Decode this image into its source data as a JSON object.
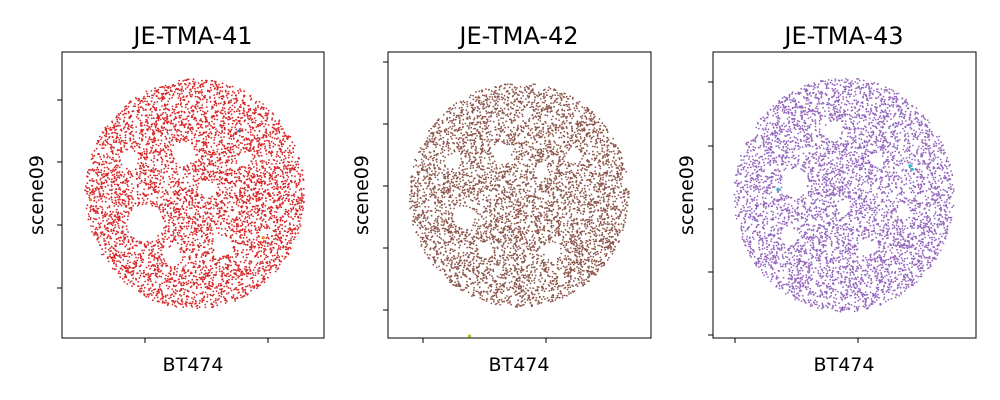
{
  "chart_data": [
    {
      "type": "scatter",
      "title": "JE-TMA-41",
      "xlabel": "BT474",
      "ylabel": "scene09",
      "x_tick_labels": [],
      "y_tick_labels": [],
      "grid": false,
      "series": [
        {
          "color": "#d62728",
          "shape": "disc",
          "center": [
            0.0,
            0.0
          ],
          "radius": 1.0,
          "approx_points": 5200
        },
        {
          "color": "#ff7f0e",
          "points": [
            [
              0.62,
              -0.38
            ],
            [
              -0.95,
              -0.05
            ]
          ]
        },
        {
          "color": "#1f77b4",
          "points": [
            [
              0.4,
              0.55
            ]
          ]
        }
      ]
    },
    {
      "type": "scatter",
      "title": "JE-TMA-42",
      "xlabel": "BT474",
      "ylabel": "scene09",
      "x_tick_labels": [],
      "y_tick_labels": [],
      "grid": false,
      "series": [
        {
          "color": "#8c564b",
          "shape": "disc",
          "center": [
            0.0,
            0.0
          ],
          "radius": 1.0,
          "approx_points": 5200
        },
        {
          "color": "#bcbd22",
          "points": [
            [
              -0.45,
              -1.26
            ]
          ]
        }
      ]
    },
    {
      "type": "scatter",
      "title": "JE-TMA-43",
      "xlabel": "BT474",
      "ylabel": "scene09",
      "x_tick_labels": [],
      "y_tick_labels": [],
      "grid": false,
      "series": [
        {
          "color": "#9467bd",
          "shape": "disc",
          "center": [
            0.0,
            0.0
          ],
          "radius": 1.0,
          "approx_points": 5200
        },
        {
          "color": "#17becf",
          "points": [
            [
              0.6,
              0.25
            ],
            [
              0.62,
              0.22
            ],
            [
              -0.6,
              0.05
            ]
          ]
        }
      ]
    }
  ]
}
